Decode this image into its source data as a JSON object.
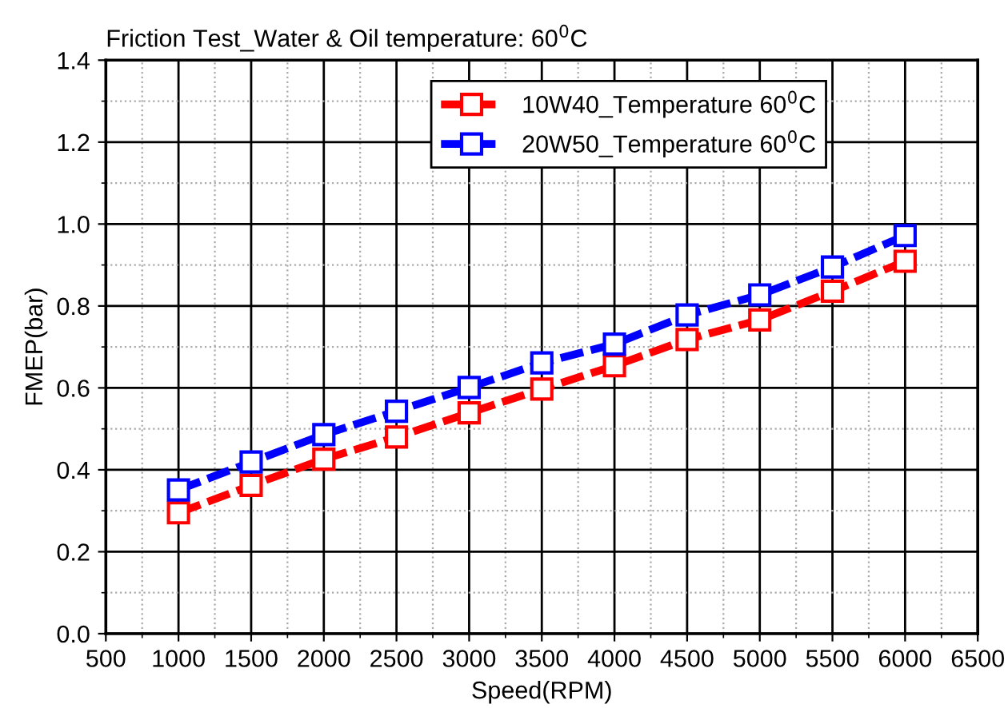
{
  "chart_data": {
    "type": "line",
    "title": "Friction Test_Water & Oil temperature: 60$^{0}$C",
    "xlabel": "Speed(RPM)",
    "ylabel": "FMEP(bar)",
    "x": [
      1000,
      1500,
      2000,
      2500,
      3000,
      3500,
      4000,
      4500,
      5000,
      5500,
      6000
    ],
    "series": [
      {
        "name": "10W40_Temperature 60$^{0}$C",
        "color": "#ff0000",
        "values": [
          0.295,
          0.362,
          0.426,
          0.48,
          0.539,
          0.597,
          0.654,
          0.718,
          0.766,
          0.836,
          0.909
        ]
      },
      {
        "name": "20W50_Temperature 60$^{0}$C",
        "color": "#0000ff",
        "values": [
          0.351,
          0.419,
          0.486,
          0.543,
          0.601,
          0.661,
          0.707,
          0.778,
          0.827,
          0.895,
          0.972
        ]
      }
    ],
    "xlim": [
      500,
      6500
    ],
    "xticks": [
      500,
      1000,
      1500,
      2000,
      2500,
      3000,
      3500,
      4000,
      4500,
      5000,
      5500,
      6000,
      6500
    ],
    "ylim": [
      0.0,
      1.4
    ],
    "yticks": [
      {
        "value": 0.0,
        "label": "0.0"
      },
      0.2,
      0.4,
      0.6,
      0.8,
      {
        "value": 1.0,
        "label": "1.0"
      },
      1.2,
      1.4
    ],
    "grid": true,
    "legend": "top right",
    "marker": "square",
    "line_style": "dashed"
  }
}
